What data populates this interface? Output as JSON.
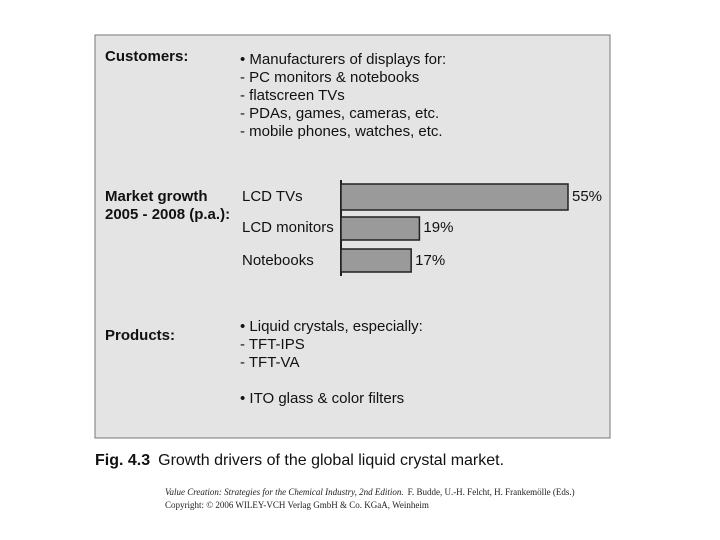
{
  "customers": {
    "label": "Customers:",
    "items": [
      "• Manufacturers of displays for:",
      "- PC monitors & notebooks",
      "- flatscreen TVs",
      "- PDAs, games, cameras, etc.",
      "- mobile phones, watches, etc."
    ]
  },
  "market_growth_label": [
    "Market growth",
    "2005 - 2008 (p.a.):"
  ],
  "chart_data": {
    "type": "bar",
    "orientation": "horizontal",
    "categories": [
      "LCD TVs",
      "LCD monitors",
      "Notebooks"
    ],
    "values": [
      55,
      19,
      17
    ],
    "value_labels": [
      "55%",
      "19%",
      "17%"
    ],
    "color": "#9a9a9a"
  },
  "products": {
    "label": "Products:",
    "items": [
      "• Liquid crystals, especially:",
      "- TFT-IPS",
      "- TFT-VA",
      "• ITO glass & color filters"
    ]
  },
  "caption": {
    "number": "Fig. 4.3",
    "text": "Growth drivers of the global liquid crystal market."
  },
  "credit": {
    "title": "Value Creation: Strategies for the Chemical Industry, 2nd Edition.",
    "authors": "F. Budde, U.-H. Felcht, H. Frankemölle (Eds.)",
    "copyright": "Copyright: © 2006 WILEY-VCH Verlag GmbH & Co. KGaA, Weinheim"
  }
}
